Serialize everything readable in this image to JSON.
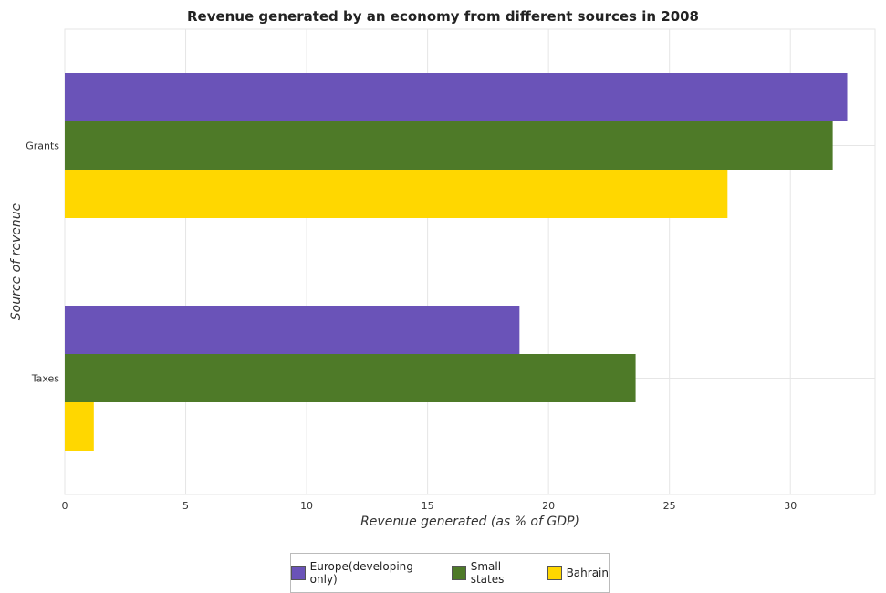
{
  "title": "Revenue generated by an economy from different sources in 2008",
  "chart_data": {
    "type": "bar",
    "orientation": "horizontal",
    "title": "Revenue generated by an economy from different sources in 2008",
    "xlabel": "Revenue generated (as % of GDP)",
    "ylabel": "Source of revenue",
    "categories": [
      "Grants",
      "Taxes"
    ],
    "xlim": [
      0,
      33.5
    ],
    "x_ticks": [
      0,
      5,
      10,
      15,
      20,
      25,
      30
    ],
    "grid": true,
    "legend_position": "bottom-center",
    "series": [
      {
        "name": "Europe(developing only)",
        "color": "#6a53b8",
        "values": [
          32.35,
          18.8
        ]
      },
      {
        "name": "Small states",
        "color": "#4e7a28",
        "values": [
          31.75,
          23.6
        ]
      },
      {
        "name": "Bahrain",
        "color": "#ffd700",
        "values": [
          27.4,
          1.2
        ]
      }
    ]
  }
}
